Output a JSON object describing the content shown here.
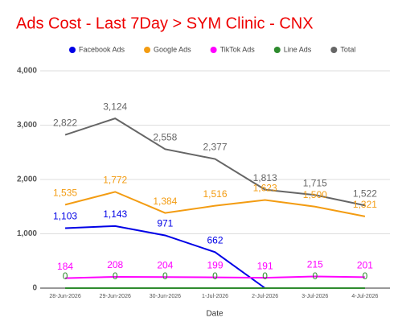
{
  "chart_data": {
    "type": "line",
    "title": "Ads Cost - Last 7Day > SYM Clinic - CNX",
    "x_label": "Date",
    "categories": [
      "28-Jun-2026",
      "29-Jun-2026",
      "30-Jun-2026",
      "1-Jul-2026",
      "2-Jul-2026",
      "3-Jul-2026",
      "4-Jul-2026"
    ],
    "series": [
      {
        "name": "Facebook Ads",
        "color": "#0000e6",
        "values": [
          1103,
          1143,
          971,
          662,
          0,
          null,
          null
        ],
        "value_labels": [
          "1,103",
          "1,143",
          "971",
          "662",
          null,
          null,
          null
        ]
      },
      {
        "name": "Google Ads",
        "color": "#f39c12",
        "values": [
          1535,
          1772,
          1384,
          1516,
          1623,
          1500,
          1321
        ],
        "value_labels": [
          "1,535",
          "1,772",
          "1,384",
          "1,516",
          "1,623",
          "1,500",
          "1,321"
        ]
      },
      {
        "name": "TikTok Ads",
        "color": "#ff00ff",
        "values": [
          184,
          208,
          204,
          199,
          191,
          215,
          201
        ],
        "value_labels": [
          "184",
          "208",
          "204",
          "199",
          "191",
          "215",
          "201"
        ]
      },
      {
        "name": "Line Ads",
        "color": "#2e8b2e",
        "values": [
          0,
          0,
          0,
          0,
          0,
          0,
          0
        ],
        "value_labels": [
          "0",
          "0",
          "0",
          "0",
          "0",
          "0",
          "0"
        ]
      },
      {
        "name": "Total",
        "color": "#666666",
        "values": [
          2822,
          3124,
          2558,
          2377,
          1813,
          1715,
          1522
        ],
        "value_labels": [
          "2,822",
          "3,124",
          "2,558",
          "2,377",
          "1,813",
          "1,715",
          "1,522"
        ]
      }
    ],
    "ylim": [
      0,
      4000
    ],
    "yticks": [
      0,
      {
        "value": 1000,
        "label": "1,000"
      },
      {
        "value": 2000,
        "label": "2,000"
      },
      {
        "value": 3000,
        "label": "3,000"
      },
      {
        "value": 4000,
        "label": "4,000"
      }
    ],
    "grid": true,
    "legend": "top"
  }
}
